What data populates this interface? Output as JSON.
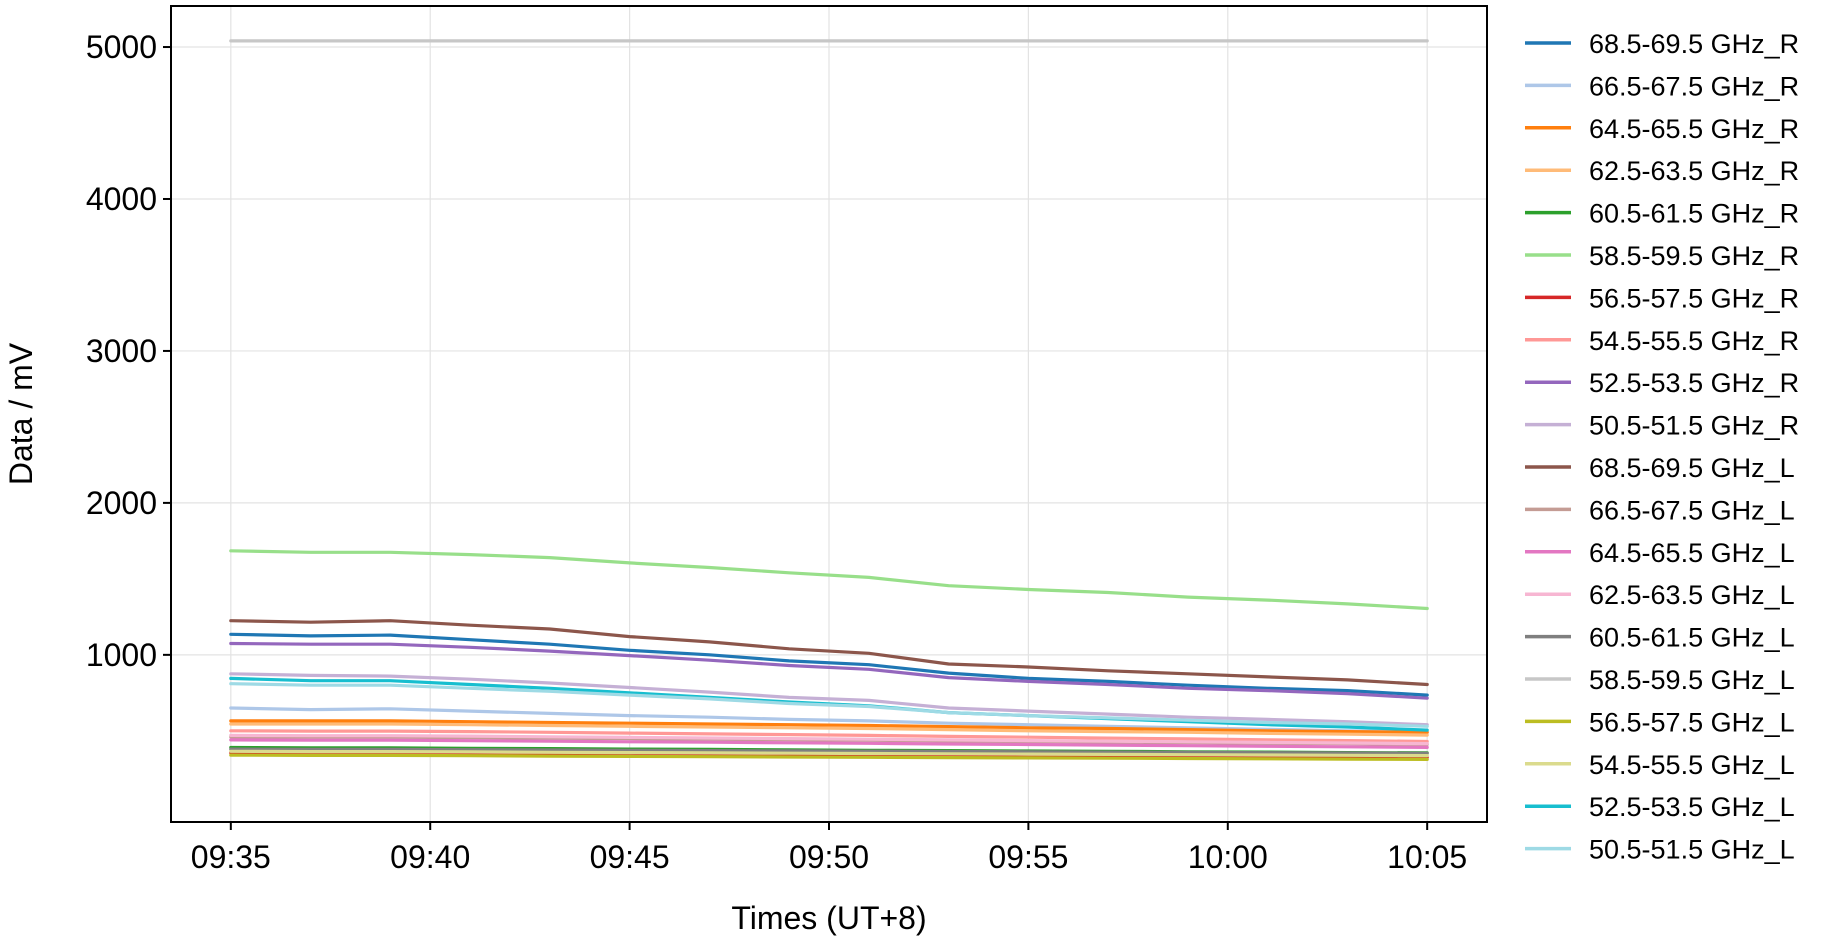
{
  "chart_data": {
    "type": "line",
    "xlabel": "Times (UT+8)",
    "ylabel": "Data / mV",
    "xlim": [
      "09:33:30",
      "10:06:30"
    ],
    "ylim": [
      -100,
      5270
    ],
    "grid": true,
    "legend": "outside-right",
    "xticks": [
      "09:35",
      "09:40",
      "09:45",
      "09:50",
      "09:55",
      "10:00",
      "10:05"
    ],
    "yticks": [
      1000,
      2000,
      3000,
      4000,
      5000
    ],
    "x_points": [
      "09:35",
      "09:37",
      "09:39",
      "09:41",
      "09:43",
      "09:45",
      "09:47",
      "09:49",
      "09:51",
      "09:53",
      "09:55",
      "09:57",
      "09:59",
      "10:01",
      "10:03",
      "10:05"
    ],
    "series": [
      {
        "name": "68.5-69.5 GHz_R",
        "color": "#1f77b4",
        "values": [
          1135,
          1125,
          1130,
          1100,
          1070,
          1030,
          1000,
          960,
          935,
          880,
          845,
          825,
          800,
          780,
          765,
          735
        ]
      },
      {
        "name": "66.5-67.5 GHz_R",
        "color": "#aec7e8",
        "values": [
          650,
          640,
          645,
          630,
          615,
          600,
          590,
          575,
          565,
          550,
          540,
          530,
          520,
          510,
          500,
          495
        ]
      },
      {
        "name": "64.5-65.5 GHz_R",
        "color": "#ff7f0e",
        "values": [
          565,
          565,
          565,
          560,
          555,
          550,
          545,
          540,
          535,
          528,
          520,
          515,
          508,
          500,
          495,
          490
        ]
      },
      {
        "name": "62.5-63.5 GHz_R",
        "color": "#ffbb78",
        "values": [
          545,
          545,
          545,
          540,
          535,
          530,
          525,
          520,
          515,
          508,
          500,
          495,
          490,
          483,
          478,
          472
        ]
      },
      {
        "name": "60.5-61.5 GHz_R",
        "color": "#2ca02c",
        "values": [
          390,
          388,
          388,
          385,
          383,
          380,
          378,
          375,
          372,
          370,
          367,
          365,
          362,
          360,
          357,
          355
        ]
      },
      {
        "name": "58.5-59.5 GHz_R",
        "color": "#98df8a",
        "values": [
          1685,
          1675,
          1675,
          1660,
          1640,
          1605,
          1575,
          1540,
          1510,
          1455,
          1430,
          1410,
          1380,
          1360,
          1335,
          1305
        ]
      },
      {
        "name": "56.5-57.5 GHz_R",
        "color": "#d62728",
        "values": [
          355,
          353,
          353,
          350,
          348,
          346,
          344,
          342,
          340,
          338,
          336,
          334,
          332,
          330,
          328,
          325
        ]
      },
      {
        "name": "54.5-55.5 GHz_R",
        "color": "#ff9896",
        "values": [
          500,
          498,
          498,
          495,
          490,
          485,
          480,
          475,
          470,
          463,
          458,
          452,
          447,
          441,
          436,
          430
        ]
      },
      {
        "name": "52.5-53.5 GHz_R",
        "color": "#9467bd",
        "values": [
          1075,
          1070,
          1070,
          1050,
          1025,
          995,
          965,
          930,
          905,
          850,
          825,
          805,
          780,
          765,
          745,
          715
        ]
      },
      {
        "name": "50.5-51.5 GHz_R",
        "color": "#c5b0d5",
        "values": [
          875,
          865,
          860,
          840,
          815,
          785,
          755,
          720,
          700,
          650,
          630,
          610,
          590,
          575,
          560,
          540
        ]
      },
      {
        "name": "68.5-69.5 GHz_L",
        "color": "#8c564b",
        "values": [
          1225,
          1215,
          1225,
          1195,
          1170,
          1120,
          1085,
          1040,
          1010,
          940,
          920,
          895,
          875,
          855,
          835,
          805
        ]
      },
      {
        "name": "66.5-67.5 GHz_L",
        "color": "#c49c94",
        "values": [
          460,
          458,
          458,
          455,
          452,
          448,
          445,
          441,
          438,
          433,
          430,
          426,
          422,
          418,
          415,
          411
        ]
      },
      {
        "name": "64.5-65.5 GHz_L",
        "color": "#e377c2",
        "values": [
          440,
          438,
          438,
          435,
          432,
          428,
          425,
          421,
          418,
          413,
          410,
          406,
          402,
          398,
          395,
          391
        ]
      },
      {
        "name": "62.5-63.5 GHz_L",
        "color": "#f7b6d2",
        "values": [
          470,
          468,
          468,
          465,
          461,
          457,
          453,
          449,
          445,
          440,
          436,
          432,
          428,
          424,
          420,
          416
        ]
      },
      {
        "name": "60.5-61.5 GHz_L",
        "color": "#7f7f7f",
        "values": [
          380,
          378,
          378,
          376,
          374,
          372,
          370,
          368,
          366,
          364,
          362,
          360,
          358,
          356,
          354,
          352
        ]
      },
      {
        "name": "58.5-59.5 GHz_L",
        "color": "#c7c7c7",
        "values": [
          5040,
          5040,
          5040,
          5040,
          5040,
          5040,
          5040,
          5040,
          5040,
          5040,
          5040,
          5040,
          5040,
          5040,
          5040,
          5040
        ]
      },
      {
        "name": "56.5-57.5 GHz_L",
        "color": "#bcbd22",
        "values": [
          340,
          338,
          338,
          336,
          334,
          332,
          330,
          328,
          326,
          324,
          322,
          320,
          318,
          316,
          314,
          312
        ]
      },
      {
        "name": "54.5-55.5 GHz_L",
        "color": "#dbdb8d",
        "values": [
          365,
          363,
          363,
          361,
          359,
          357,
          355,
          353,
          351,
          349,
          347,
          345,
          343,
          341,
          339,
          337
        ]
      },
      {
        "name": "52.5-53.5 GHz_L",
        "color": "#17becf",
        "values": [
          845,
          830,
          830,
          805,
          780,
          750,
          720,
          690,
          665,
          620,
          600,
          580,
          560,
          540,
          525,
          505
        ]
      },
      {
        "name": "50.5-51.5 GHz_L",
        "color": "#9edae5",
        "values": [
          810,
          800,
          800,
          780,
          760,
          735,
          710,
          680,
          660,
          620,
          600,
          585,
          570,
          555,
          545,
          530
        ]
      }
    ]
  }
}
